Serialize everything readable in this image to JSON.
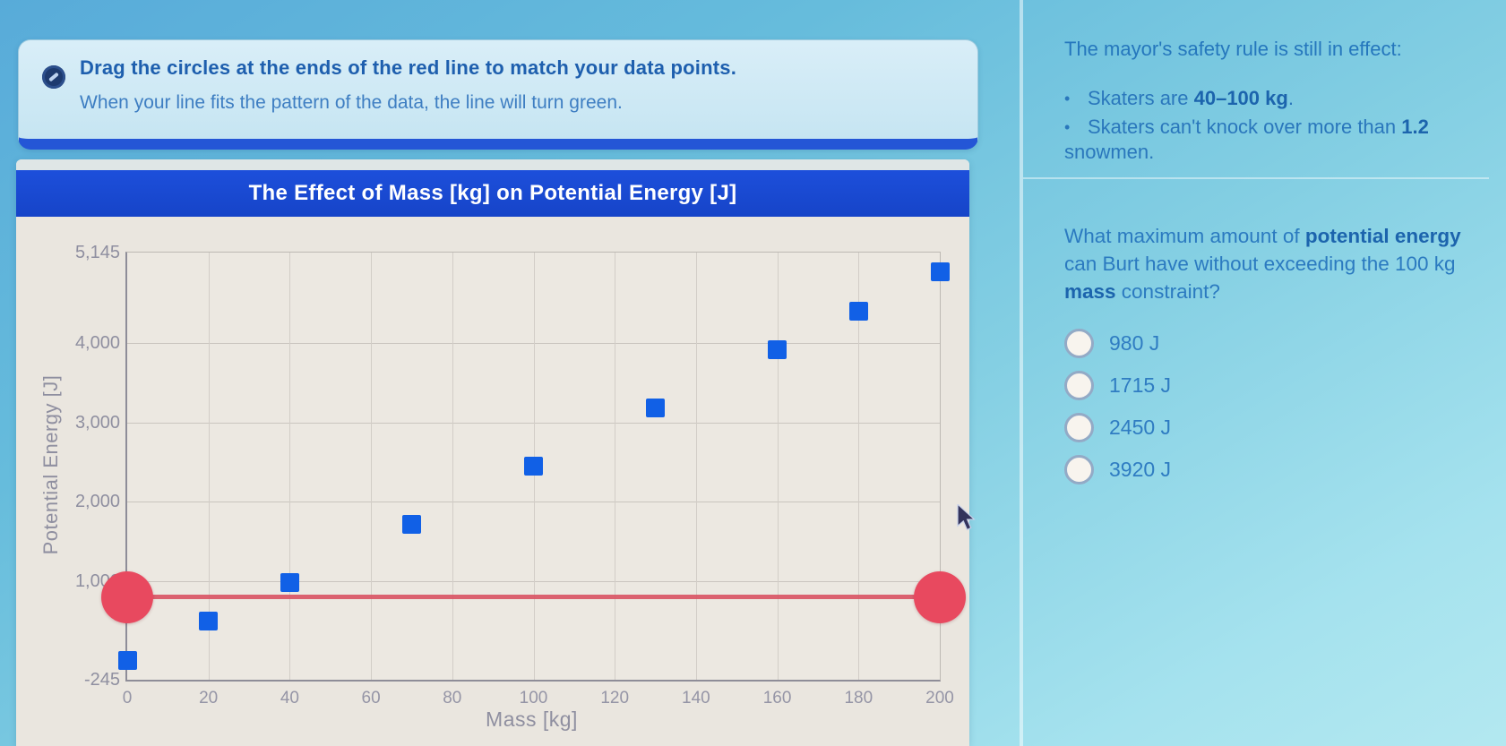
{
  "instruction_card": {
    "icon": "target-icon",
    "line1": "Drag the circles at the ends of the red line to match your data points.",
    "line2": "When your line fits the pattern of the data, the line will turn green."
  },
  "chart_data": {
    "type": "scatter",
    "title": "The Effect of Mass [kg] on Potential Energy [J]",
    "xlabel": "Mass [kg]",
    "ylabel": "Potential Energy [J]",
    "xlim": [
      0,
      200
    ],
    "ylim": [
      -245,
      5145
    ],
    "grid": true,
    "x_ticks": [
      0,
      20,
      40,
      60,
      80,
      100,
      120,
      140,
      160,
      180,
      200
    ],
    "y_ticks": [
      {
        "label": "5,145",
        "value": 5145
      },
      {
        "label": "4,000",
        "value": 4000
      },
      {
        "label": "3,000",
        "value": 3000
      },
      {
        "label": "2,000",
        "value": 2000
      },
      {
        "label": "1,000",
        "value": 1000
      },
      {
        "label": "-245",
        "value": -245
      }
    ],
    "points": [
      {
        "mass": 0,
        "pe": 0
      },
      {
        "mass": 20,
        "pe": 490
      },
      {
        "mass": 40,
        "pe": 980
      },
      {
        "mass": 70,
        "pe": 1715
      },
      {
        "mass": 100,
        "pe": 2450
      },
      {
        "mass": 130,
        "pe": 3185
      },
      {
        "mass": 160,
        "pe": 3920
      },
      {
        "mass": 180,
        "pe": 4410
      },
      {
        "mass": 200,
        "pe": 4900
      }
    ],
    "fit_line": {
      "pe": 800,
      "mass_start": 0,
      "mass_end": 200,
      "status": "red"
    },
    "point_color": "#1160e6",
    "line_color": "#d95565",
    "handle_color": "#e8495f"
  },
  "side_panel": {
    "rule_intro": "The mayor's safety rule is still in effect:",
    "bullets": [
      {
        "segments": [
          {
            "text": "Skaters are ",
            "bold": false
          },
          {
            "text": "40–100 kg",
            "bold": true
          },
          {
            "text": ".",
            "bold": false
          }
        ]
      },
      {
        "segments": [
          {
            "text": "Skaters can't knock over more than ",
            "bold": false
          },
          {
            "text": "1.2",
            "bold": true
          },
          {
            "text": " snowmen.",
            "bold": false
          }
        ]
      }
    ],
    "question": {
      "segments": [
        {
          "text": "What maximum amount of ",
          "bold": false
        },
        {
          "text": "potential energy",
          "bold": true
        },
        {
          "text": " can Burt have without exceeding the 100 kg ",
          "bold": false
        },
        {
          "text": "mass",
          "bold": true
        },
        {
          "text": " constraint?",
          "bold": false
        }
      ]
    },
    "options": [
      {
        "label": "980 J",
        "selected": false
      },
      {
        "label": "1715 J",
        "selected": false
      },
      {
        "label": "2450 J",
        "selected": false
      },
      {
        "label": "3920 J",
        "selected": false
      }
    ]
  },
  "colors": {
    "title_bar_blue": "#1746d2",
    "data_point_blue": "#1160e6",
    "fit_line_red": "#e8495f",
    "panel_text_blue": "#2b7ac0"
  }
}
